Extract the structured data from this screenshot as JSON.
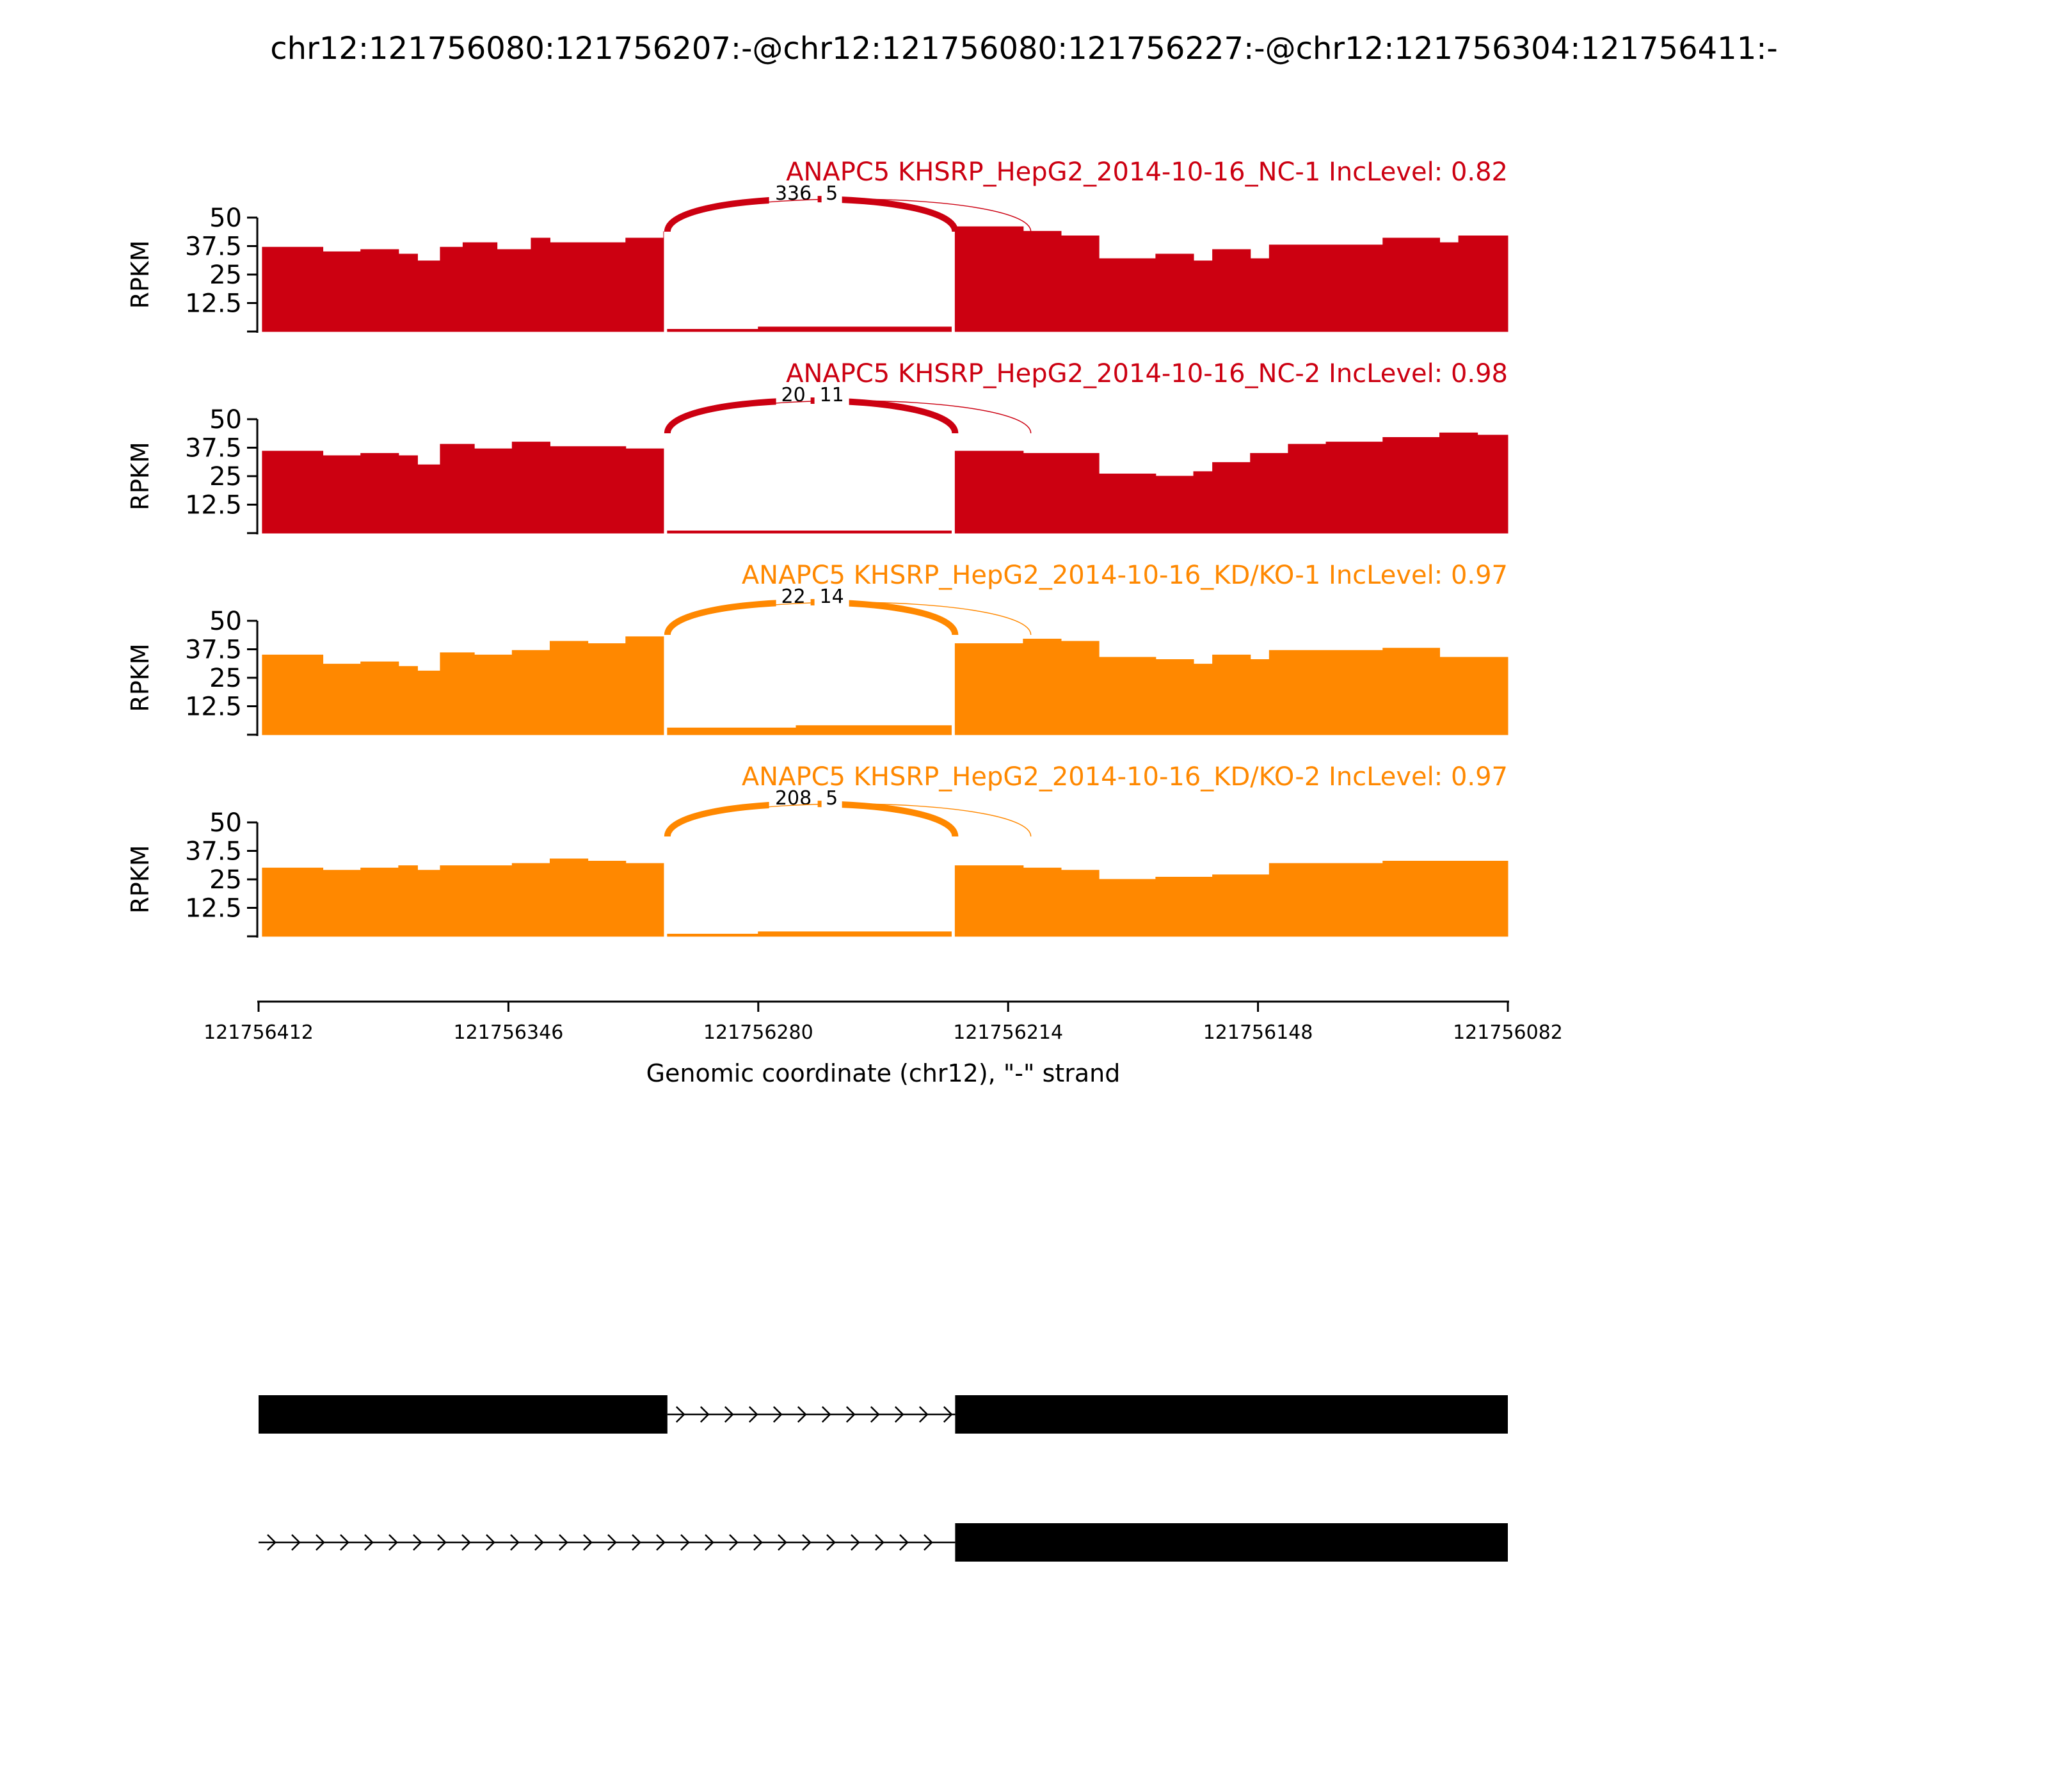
{
  "title": "chr12:121756080:121756207:-@chr12:121756080:121756227:-@chr12:121756304:121756411:-",
  "colors": {
    "nc": "#CC0011",
    "kd": "#FF8800",
    "axis": "#000000",
    "gene": "#000000"
  },
  "chart_data": {
    "type": "area",
    "xlabel": "Genomic coordinate (chr12), \"-\" strand",
    "ylabel": "RPKM",
    "xlim": [
      121756412,
      121756082
    ],
    "xticks": [
      "121756412",
      "121756346",
      "121756280",
      "121756214",
      "121756148",
      "121756082"
    ],
    "xtick_values": [
      121756412,
      121756346,
      121756280,
      121756214,
      121756148,
      121756082
    ],
    "ylim": [
      0,
      50
    ],
    "yticks": [
      "12.5",
      "25",
      "37.5",
      "50"
    ],
    "ytick_values": [
      12.5,
      25,
      37.5,
      50
    ],
    "tracks": [
      {
        "name": "ANAPC5 KHSRP_HepG2_2014-10-16_NC-1 IncLevel: 0.82",
        "color_key": "nc",
        "segments": [
          {
            "x": [
              121756411,
              121756395,
              121756385,
              121756375,
              121756370,
              121756364,
              121756358,
              121756349,
              121756340,
              121756335,
              121756325,
              121756315,
              121756305
            ],
            "y": [
              37,
              35,
              36,
              34,
              31,
              37,
              39,
              36,
              41,
              39,
              39,
              41,
              44
            ]
          },
          {
            "x": [
              121756304,
              121756300,
              121756280,
              121756260,
              121756229
            ],
            "y": [
              1,
              1,
              2,
              2,
              2
            ]
          },
          {
            "x": [
              121756228,
              121756220,
              121756210,
              121756200,
              121756190,
              121756185,
              121756175,
              121756165,
              121756160,
              121756150,
              121756145,
              121756130,
              121756115,
              121756100,
              121756095,
              121756082
            ],
            "y": [
              46,
              46,
              44,
              42,
              32,
              32,
              34,
              31,
              36,
              32,
              38,
              38,
              41,
              39,
              42,
              42
            ]
          }
        ],
        "junctions": [
          {
            "label": "336",
            "from": 121756304,
            "to": 121756228
          },
          {
            "label": "5",
            "from": 121756304,
            "to": 121756208
          }
        ]
      },
      {
        "name": "ANAPC5 KHSRP_HepG2_2014-10-16_NC-2 IncLevel: 0.98",
        "color_key": "nc",
        "segments": [
          {
            "x": [
              121756411,
              121756395,
              121756385,
              121756375,
              121756370,
              121756364,
              121756355,
              121756345,
              121756335,
              121756325,
              121756315,
              121756305
            ],
            "y": [
              36,
              34,
              35,
              34,
              30,
              39,
              37,
              40,
              38,
              38,
              37,
              35
            ]
          },
          {
            "x": [
              121756304,
              121756280,
              121756229
            ],
            "y": [
              1,
              1,
              1
            ]
          },
          {
            "x": [
              121756228,
              121756210,
              121756200,
              121756190,
              121756185,
              121756175,
              121756165,
              121756160,
              121756150,
              121756140,
              121756130,
              121756115,
              121756100,
              121756090,
              121756082
            ],
            "y": [
              36,
              35,
              35,
              26,
              26,
              25,
              27,
              31,
              35,
              39,
              40,
              42,
              44,
              43,
              43
            ]
          }
        ],
        "junctions": [
          {
            "label": "20",
            "from": 121756304,
            "to": 121756228
          },
          {
            "label": "11",
            "from": 121756304,
            "to": 121756208
          }
        ]
      },
      {
        "name": "ANAPC5 KHSRP_HepG2_2014-10-16_KD/KO-1 IncLevel: 0.97",
        "color_key": "kd",
        "segments": [
          {
            "x": [
              121756411,
              121756395,
              121756385,
              121756375,
              121756370,
              121756364,
              121756355,
              121756345,
              121756335,
              121756325,
              121756315,
              121756305
            ],
            "y": [
              35,
              31,
              32,
              30,
              28,
              36,
              35,
              37,
              41,
              40,
              43,
              40
            ]
          },
          {
            "x": [
              121756304,
              121756295,
              121756270,
              121756250,
              121756229
            ],
            "y": [
              3,
              3,
              4,
              4,
              3
            ]
          },
          {
            "x": [
              121756228,
              121756220,
              121756210,
              121756200,
              121756190,
              121756185,
              121756175,
              121756165,
              121756160,
              121756150,
              121756145,
              121756130,
              121756115,
              121756100,
              121756090,
              121756082
            ],
            "y": [
              40,
              40,
              42,
              41,
              34,
              34,
              33,
              31,
              35,
              33,
              37,
              37,
              38,
              34,
              34,
              33
            ]
          }
        ],
        "junctions": [
          {
            "label": "22",
            "from": 121756304,
            "to": 121756228
          },
          {
            "label": "14",
            "from": 121756304,
            "to": 121756208
          }
        ]
      },
      {
        "name": "ANAPC5 KHSRP_HepG2_2014-10-16_KD/KO-2 IncLevel: 0.97",
        "color_key": "kd",
        "segments": [
          {
            "x": [
              121756411,
              121756395,
              121756385,
              121756375,
              121756370,
              121756364,
              121756355,
              121756345,
              121756335,
              121756325,
              121756315,
              121756305
            ],
            "y": [
              30,
              29,
              30,
              31,
              29,
              31,
              31,
              32,
              34,
              33,
              32,
              31
            ]
          },
          {
            "x": [
              121756304,
              121756280,
              121756229
            ],
            "y": [
              1,
              2,
              2
            ]
          },
          {
            "x": [
              121756228,
              121756220,
              121756210,
              121756200,
              121756190,
              121756185,
              121756175,
              121756165,
              121756160,
              121756150,
              121756145,
              121756130,
              121756115,
              121756100,
              121756090,
              121756082
            ],
            "y": [
              31,
              31,
              30,
              29,
              25,
              25,
              26,
              26,
              27,
              27,
              32,
              32,
              33,
              33,
              33,
              33
            ]
          }
        ],
        "junctions": [
          {
            "label": "208",
            "from": 121756304,
            "to": 121756228
          },
          {
            "label": "5",
            "from": 121756304,
            "to": 121756208
          }
        ]
      }
    ],
    "gene_models": [
      {
        "exons": [
          [
            121756412,
            121756304
          ],
          [
            121756228,
            121756082
          ]
        ],
        "intron": [
          121756304,
          121756228
        ]
      },
      {
        "exons": [
          [
            121756228,
            121756082
          ]
        ],
        "intron": [
          121756412,
          121756228
        ]
      }
    ]
  }
}
